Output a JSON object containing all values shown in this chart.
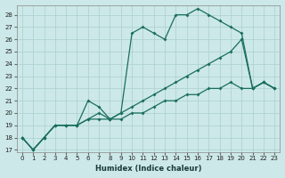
{
  "xlabel": "Humidex (Indice chaleur)",
  "bg_color": "#cce8e8",
  "grid_color": "#aacfcf",
  "line_color": "#1a6e5e",
  "xlim": [
    -0.5,
    23.5
  ],
  "ylim": [
    16.8,
    28.8
  ],
  "yticks": [
    17,
    18,
    19,
    20,
    21,
    22,
    23,
    24,
    25,
    26,
    27,
    28
  ],
  "xticks": [
    0,
    1,
    2,
    3,
    4,
    5,
    6,
    7,
    8,
    9,
    10,
    11,
    12,
    13,
    14,
    15,
    16,
    17,
    18,
    19,
    20,
    21,
    22,
    23
  ],
  "line1_x": [
    0,
    1,
    2,
    3,
    4,
    5,
    6,
    7,
    8,
    9,
    10,
    11,
    12,
    13,
    14,
    15,
    16,
    17,
    18,
    19,
    20,
    21,
    22,
    23
  ],
  "line1_y": [
    18,
    17,
    18,
    19,
    19,
    19,
    19.5,
    19.5,
    19.5,
    19.5,
    20,
    20,
    20.5,
    21,
    21,
    21.5,
    21.5,
    22,
    22,
    22.5,
    22,
    22,
    22.5,
    22
  ],
  "line2_x": [
    0,
    1,
    2,
    3,
    4,
    5,
    6,
    7,
    8,
    9,
    10,
    11,
    12,
    13,
    14,
    15,
    16,
    17,
    18,
    19,
    20,
    21,
    22,
    23
  ],
  "line2_y": [
    18,
    17,
    18,
    19,
    19,
    19,
    19.5,
    20,
    19.5,
    20,
    20.5,
    21,
    21.5,
    22,
    22.5,
    23,
    23.5,
    24,
    24.5,
    25,
    26,
    22,
    22.5,
    22
  ],
  "line3_x": [
    0,
    1,
    2,
    3,
    4,
    5,
    6,
    7,
    8,
    9,
    10,
    11,
    12,
    13,
    14,
    15,
    16,
    17,
    18,
    19,
    20,
    21,
    22,
    23
  ],
  "line3_y": [
    18,
    17,
    18,
    19,
    19,
    19,
    21,
    20.5,
    19.5,
    20,
    26.5,
    27,
    26.5,
    26,
    28,
    28,
    28.5,
    28,
    27.5,
    27,
    26.5,
    22,
    22.5,
    22
  ]
}
